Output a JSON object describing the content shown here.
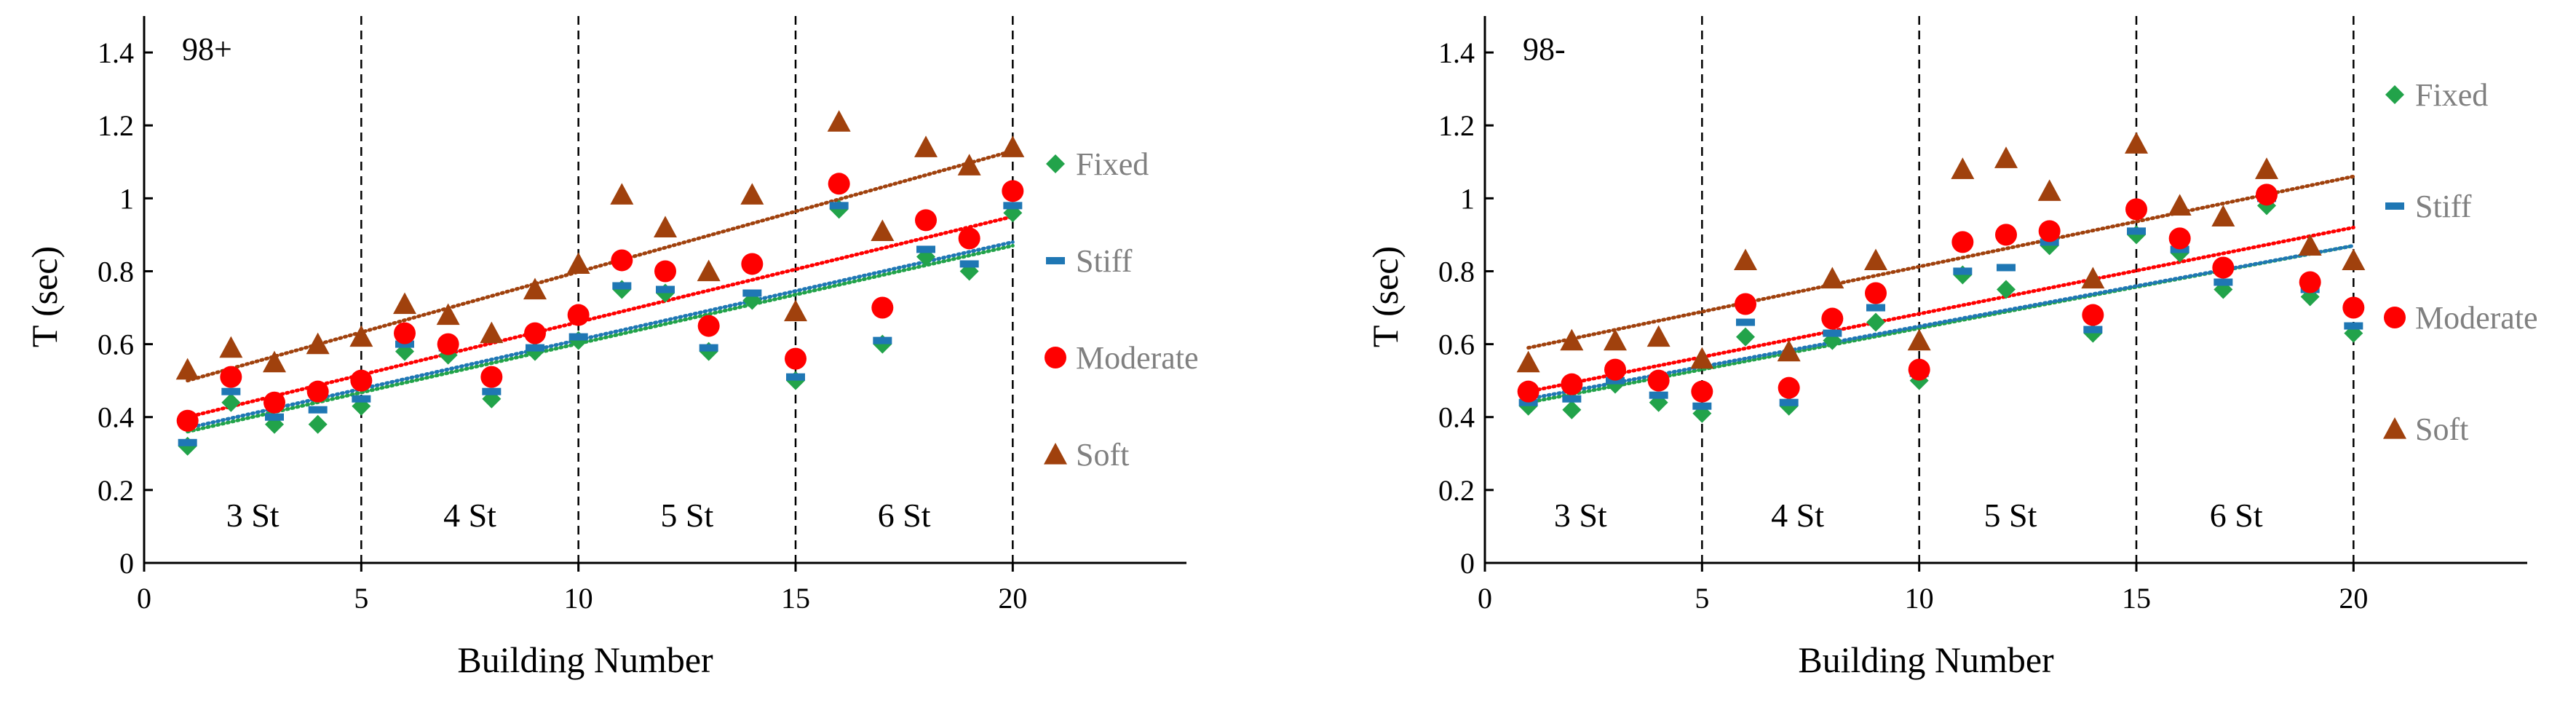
{
  "chart_data": [
    {
      "type": "scatter",
      "panel_label": "98+",
      "xlabel": "Building Number",
      "ylabel": "T (sec)",
      "xlim": [
        0,
        24
      ],
      "ylim": [
        0,
        1.5
      ],
      "x_ticks": [
        0,
        5,
        10,
        15,
        20
      ],
      "y_ticks": [
        0,
        0.2,
        0.4,
        0.6,
        0.8,
        1,
        1.2,
        1.4
      ],
      "x_tick_labels": [
        "0",
        "5",
        "10",
        "15",
        "20"
      ],
      "y_tick_labels": [
        "0",
        "0.2",
        "0.4",
        "0.6",
        "0.8",
        "1",
        "1.2",
        "1.4"
      ],
      "story_dividers": [
        5,
        10,
        15,
        20
      ],
      "story_labels": [
        {
          "label": "3 St",
          "x": 2.5
        },
        {
          "label": "4 St",
          "x": 7.5
        },
        {
          "label": "5 St",
          "x": 12.5
        },
        {
          "label": "6 St",
          "x": 17.5
        }
      ],
      "x": [
        1,
        2,
        3,
        4,
        5,
        6,
        7,
        8,
        9,
        10,
        11,
        12,
        13,
        14,
        15,
        16,
        17,
        18,
        19,
        20
      ],
      "series": [
        {
          "name": "Fixed",
          "marker": "diamond",
          "color": "#22a34a",
          "values": [
            0.32,
            0.44,
            0.38,
            0.38,
            0.43,
            0.58,
            0.57,
            0.45,
            0.58,
            0.61,
            0.75,
            0.74,
            0.58,
            0.72,
            0.5,
            0.97,
            0.6,
            0.84,
            0.8,
            0.96
          ],
          "trend": [
            0.36,
            0.87
          ]
        },
        {
          "name": "Stiff",
          "marker": "dash",
          "color": "#1f77b4",
          "values": [
            0.33,
            0.47,
            0.4,
            0.42,
            0.45,
            0.6,
            0.59,
            0.47,
            0.59,
            0.62,
            0.76,
            0.75,
            0.59,
            0.74,
            0.51,
            0.98,
            0.61,
            0.86,
            0.82,
            0.98
          ],
          "trend": [
            0.37,
            0.88
          ]
        },
        {
          "name": "Moderate",
          "marker": "circle",
          "color": "#ff0000",
          "values": [
            0.39,
            0.51,
            0.44,
            0.47,
            0.5,
            0.63,
            0.6,
            0.51,
            0.63,
            0.68,
            0.83,
            0.8,
            0.65,
            0.82,
            0.56,
            1.04,
            0.7,
            0.94,
            0.89,
            1.02
          ],
          "trend": [
            0.4,
            0.95
          ]
        },
        {
          "name": "Soft",
          "marker": "triangle",
          "color": "#a0410d",
          "values": [
            0.53,
            0.59,
            0.55,
            0.6,
            0.62,
            0.71,
            0.68,
            0.63,
            0.75,
            0.82,
            1.01,
            0.92,
            0.8,
            1.01,
            0.69,
            1.21,
            0.91,
            1.14,
            1.09,
            1.14
          ],
          "trend": [
            0.5,
            1.13
          ]
        }
      ],
      "legend": [
        "Fixed",
        "Stiff",
        "Moderate",
        "Soft"
      ]
    },
    {
      "type": "scatter",
      "panel_label": "98-",
      "xlabel": "Building Number",
      "ylabel": "T (sec)",
      "xlim": [
        0,
        24
      ],
      "ylim": [
        0,
        1.5
      ],
      "x_ticks": [
        0,
        5,
        10,
        15,
        20
      ],
      "y_ticks": [
        0,
        0.2,
        0.4,
        0.6,
        0.8,
        1,
        1.2,
        1.4
      ],
      "x_tick_labels": [
        "0",
        "5",
        "10",
        "15",
        "20"
      ],
      "y_tick_labels": [
        "0",
        "0.2",
        "0.4",
        "0.6",
        "0.8",
        "1",
        "1.2",
        "1.4"
      ],
      "story_dividers": [
        5,
        10,
        15,
        20
      ],
      "story_labels": [
        {
          "label": "3 St",
          "x": 2.2
        },
        {
          "label": "4 St",
          "x": 7.2
        },
        {
          "label": "5 St",
          "x": 12.1
        },
        {
          "label": "6 St",
          "x": 17.3
        }
      ],
      "x": [
        1,
        2,
        3,
        4,
        5,
        6,
        7,
        8,
        9,
        10,
        11,
        12,
        13,
        14,
        15,
        16,
        17,
        18,
        19,
        20
      ],
      "series": [
        {
          "name": "Fixed",
          "marker": "diamond",
          "color": "#22a34a",
          "values": [
            0.43,
            0.42,
            0.49,
            0.44,
            0.41,
            0.62,
            0.43,
            0.61,
            0.66,
            0.5,
            0.79,
            0.75,
            0.87,
            0.63,
            0.9,
            0.85,
            0.75,
            0.98,
            0.73,
            0.63
          ],
          "trend": [
            0.44,
            0.87
          ]
        },
        {
          "name": "Stiff",
          "marker": "dash",
          "color": "#1f77b4",
          "values": [
            0.44,
            0.45,
            0.5,
            0.46,
            0.43,
            0.66,
            0.44,
            0.63,
            0.7,
            0.52,
            0.8,
            0.81,
            0.88,
            0.64,
            0.91,
            0.86,
            0.77,
            1.0,
            0.75,
            0.65
          ],
          "trend": [
            0.45,
            0.87
          ]
        },
        {
          "name": "Moderate",
          "marker": "circle",
          "color": "#ff0000",
          "values": [
            0.47,
            0.49,
            0.53,
            0.5,
            0.47,
            0.71,
            0.48,
            0.67,
            0.74,
            0.53,
            0.88,
            0.9,
            0.91,
            0.68,
            0.97,
            0.89,
            0.81,
            1.01,
            0.77,
            0.7
          ],
          "trend": [
            0.47,
            0.92
          ]
        },
        {
          "name": "Soft",
          "marker": "triangle",
          "color": "#a0410d",
          "values": [
            0.55,
            0.61,
            0.61,
            0.62,
            0.56,
            0.83,
            0.58,
            0.78,
            0.83,
            0.61,
            1.08,
            1.11,
            1.02,
            0.78,
            1.15,
            0.98,
            0.95,
            1.08,
            0.87,
            0.83
          ],
          "trend": [
            0.59,
            1.06
          ]
        }
      ],
      "legend": [
        "Fixed",
        "Stiff",
        "Moderate",
        "Soft"
      ]
    }
  ]
}
